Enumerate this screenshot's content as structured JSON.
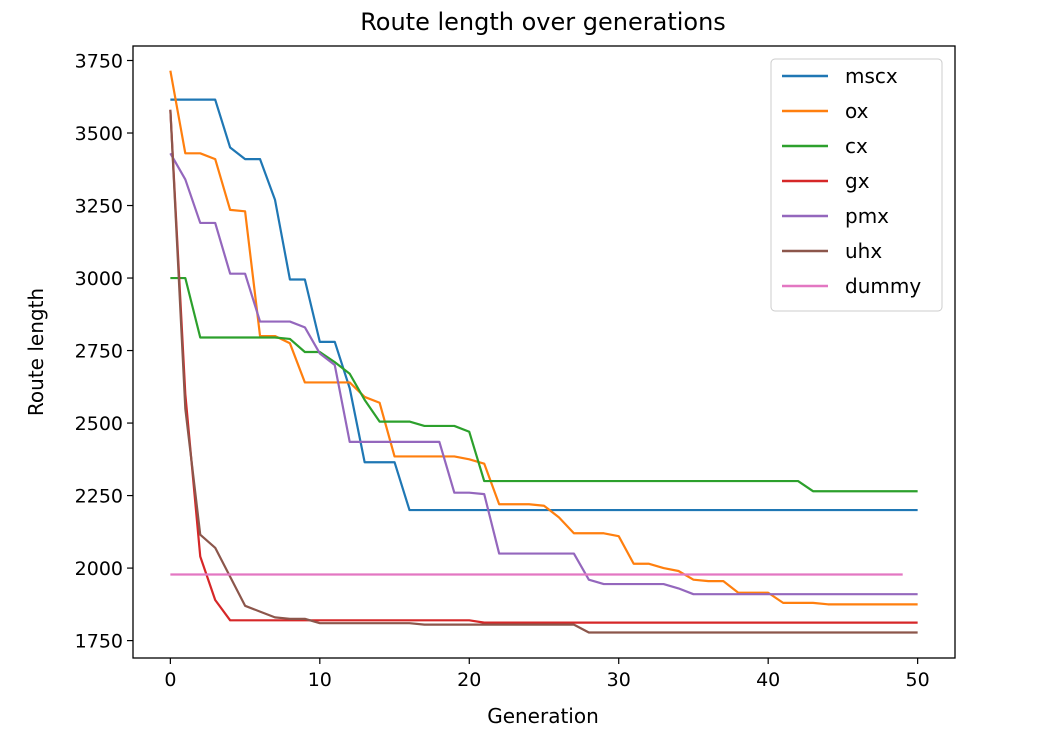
{
  "chart_data": {
    "type": "line",
    "title": "Route length over generations",
    "xlabel": "Generation",
    "ylabel": "Route length",
    "xlim": [
      -2.5,
      52.5
    ],
    "ylim": [
      1690,
      3800
    ],
    "xticks": [
      0,
      10,
      20,
      30,
      40,
      50
    ],
    "yticks": [
      1750,
      2000,
      2250,
      2500,
      2750,
      3000,
      3250,
      3500,
      3750
    ],
    "grid": false,
    "legend_position": "top-right",
    "series": [
      {
        "name": "mscx",
        "color": "#1f77b4",
        "x": [
          0,
          1,
          2,
          3,
          4,
          5,
          6,
          7,
          8,
          9,
          10,
          11,
          12,
          13,
          14,
          15,
          16,
          17,
          18,
          19,
          20,
          21,
          22,
          23,
          24,
          25,
          26,
          27,
          28,
          29,
          30,
          31,
          32,
          33,
          34,
          35,
          36,
          37,
          38,
          39,
          40,
          41,
          42,
          43,
          44,
          45,
          46,
          47,
          48,
          49,
          50
        ],
        "y": [
          3615,
          3615,
          3615,
          3615,
          3450,
          3410,
          3410,
          3270,
          2995,
          2995,
          2780,
          2780,
          2620,
          2365,
          2365,
          2365,
          2200,
          2200,
          2200,
          2200,
          2200,
          2200,
          2200,
          2200,
          2200,
          2200,
          2200,
          2200,
          2200,
          2200,
          2200,
          2200,
          2200,
          2200,
          2200,
          2200,
          2200,
          2200,
          2200,
          2200,
          2200,
          2200,
          2200,
          2200,
          2200,
          2200,
          2200,
          2200,
          2200,
          2200,
          2200
        ]
      },
      {
        "name": "ox",
        "color": "#ff7f0e",
        "x": [
          0,
          1,
          2,
          3,
          4,
          5,
          6,
          7,
          8,
          9,
          10,
          11,
          12,
          13,
          14,
          15,
          16,
          17,
          18,
          19,
          20,
          21,
          22,
          23,
          24,
          25,
          26,
          27,
          28,
          29,
          30,
          31,
          32,
          33,
          34,
          35,
          36,
          37,
          38,
          39,
          40,
          41,
          42,
          43,
          44,
          45,
          46,
          47,
          48,
          49,
          50
        ],
        "y": [
          3715,
          3430,
          3430,
          3410,
          3235,
          3230,
          2800,
          2800,
          2775,
          2640,
          2640,
          2640,
          2640,
          2590,
          2570,
          2385,
          2385,
          2385,
          2385,
          2385,
          2375,
          2360,
          2220,
          2220,
          2220,
          2215,
          2175,
          2120,
          2120,
          2120,
          2110,
          2015,
          2015,
          2000,
          1990,
          1960,
          1955,
          1955,
          1915,
          1915,
          1915,
          1880,
          1880,
          1880,
          1875,
          1875,
          1875,
          1875,
          1875,
          1875,
          1875
        ]
      },
      {
        "name": "cx",
        "color": "#2ca02c",
        "x": [
          0,
          1,
          2,
          3,
          4,
          5,
          6,
          7,
          8,
          9,
          10,
          11,
          12,
          13,
          14,
          15,
          16,
          17,
          18,
          19,
          20,
          21,
          22,
          23,
          24,
          25,
          26,
          27,
          28,
          29,
          30,
          31,
          32,
          33,
          34,
          35,
          36,
          37,
          38,
          39,
          40,
          41,
          42,
          43,
          44,
          45,
          46,
          47,
          48,
          49,
          50
        ],
        "y": [
          3000,
          3000,
          2795,
          2795,
          2795,
          2795,
          2795,
          2795,
          2790,
          2745,
          2745,
          2710,
          2670,
          2580,
          2505,
          2505,
          2505,
          2490,
          2490,
          2490,
          2470,
          2300,
          2300,
          2300,
          2300,
          2300,
          2300,
          2300,
          2300,
          2300,
          2300,
          2300,
          2300,
          2300,
          2300,
          2300,
          2300,
          2300,
          2300,
          2300,
          2300,
          2300,
          2300,
          2265,
          2265,
          2265,
          2265,
          2265,
          2265,
          2265,
          2265
        ]
      },
      {
        "name": "gx",
        "color": "#d62728",
        "x": [
          0,
          1,
          2,
          3,
          4,
          5,
          6,
          7,
          8,
          9,
          10,
          11,
          12,
          13,
          14,
          15,
          16,
          17,
          18,
          19,
          20,
          21,
          22,
          23,
          24,
          25,
          26,
          27,
          28,
          29,
          30,
          31,
          32,
          33,
          34,
          35,
          36,
          37,
          38,
          39,
          40,
          41,
          42,
          43,
          44,
          45,
          46,
          47,
          48,
          49,
          50
        ],
        "y": [
          3580,
          2600,
          2040,
          1890,
          1820,
          1820,
          1820,
          1820,
          1820,
          1820,
          1820,
          1820,
          1820,
          1820,
          1820,
          1820,
          1820,
          1820,
          1820,
          1820,
          1820,
          1812,
          1812,
          1812,
          1812,
          1812,
          1812,
          1812,
          1812,
          1812,
          1812,
          1812,
          1812,
          1812,
          1812,
          1812,
          1812,
          1812,
          1812,
          1812,
          1812,
          1812,
          1812,
          1812,
          1812,
          1812,
          1812,
          1812,
          1812,
          1812,
          1812
        ]
      },
      {
        "name": "pmx",
        "color": "#9467bd",
        "x": [
          0,
          1,
          2,
          3,
          4,
          5,
          6,
          7,
          8,
          9,
          10,
          11,
          12,
          13,
          14,
          15,
          16,
          17,
          18,
          19,
          20,
          21,
          22,
          23,
          24,
          25,
          26,
          27,
          28,
          29,
          30,
          31,
          32,
          33,
          34,
          35,
          36,
          37,
          38,
          39,
          40,
          41,
          42,
          43,
          44,
          45,
          46,
          47,
          48,
          49,
          50
        ],
        "y": [
          3430,
          3340,
          3190,
          3190,
          3015,
          3015,
          2850,
          2850,
          2850,
          2830,
          2740,
          2700,
          2435,
          2435,
          2435,
          2435,
          2435,
          2435,
          2435,
          2260,
          2260,
          2255,
          2050,
          2050,
          2050,
          2050,
          2050,
          2050,
          1960,
          1945,
          1945,
          1945,
          1945,
          1945,
          1930,
          1910,
          1910,
          1910,
          1910,
          1910,
          1910,
          1910,
          1910,
          1910,
          1910,
          1910,
          1910,
          1910,
          1910,
          1910,
          1910
        ]
      },
      {
        "name": "uhx",
        "color": "#8c564b",
        "x": [
          0,
          1,
          2,
          3,
          4,
          5,
          6,
          7,
          8,
          9,
          10,
          11,
          12,
          13,
          14,
          15,
          16,
          17,
          18,
          19,
          20,
          21,
          22,
          23,
          24,
          25,
          26,
          27,
          28,
          29,
          30,
          31,
          32,
          33,
          34,
          35,
          36,
          37,
          38,
          39,
          40,
          41,
          42,
          43,
          44,
          45,
          46,
          47,
          48,
          49,
          50
        ],
        "y": [
          3580,
          2550,
          2115,
          2070,
          1970,
          1870,
          1850,
          1830,
          1825,
          1825,
          1810,
          1810,
          1810,
          1810,
          1810,
          1810,
          1810,
          1805,
          1805,
          1805,
          1805,
          1805,
          1805,
          1805,
          1805,
          1805,
          1805,
          1805,
          1778,
          1778,
          1778,
          1778,
          1778,
          1778,
          1778,
          1778,
          1778,
          1778,
          1778,
          1778,
          1778,
          1778,
          1778,
          1778,
          1778,
          1778,
          1778,
          1778,
          1778,
          1778,
          1778
        ]
      },
      {
        "name": "dummy",
        "color": "#e377c2",
        "x": [
          0,
          49
        ],
        "y": [
          1978,
          1978
        ]
      }
    ]
  }
}
